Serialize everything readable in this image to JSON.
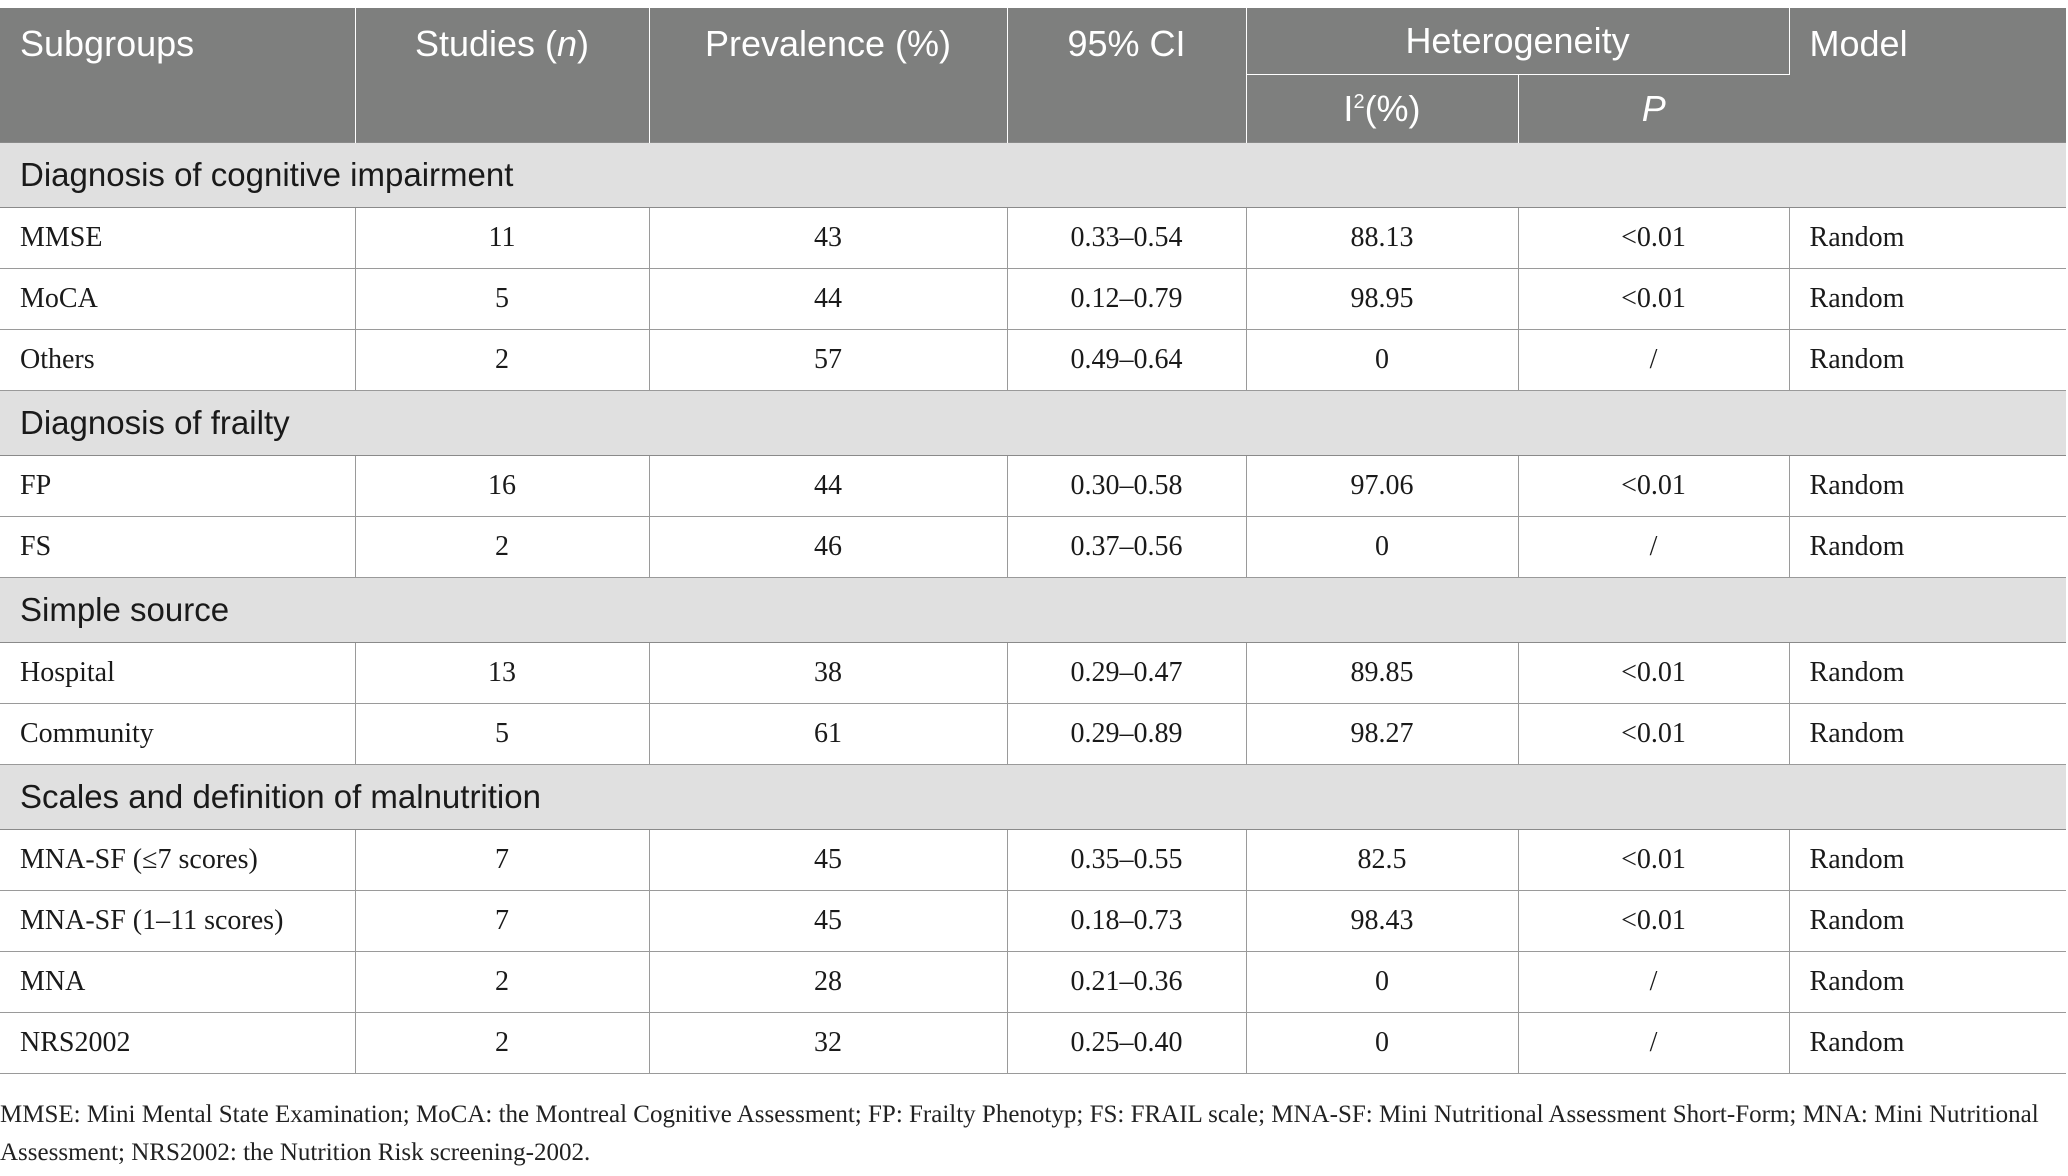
{
  "header": {
    "subgroups": "Subgroups",
    "studies_prefix": "Studies (",
    "studies_n": "n",
    "studies_suffix": ")",
    "prevalence": "Prevalence (%)",
    "ci": "95% CI",
    "heterogeneity": "Heterogeneity",
    "i2_base": "I",
    "i2_sup": "2",
    "i2_suffix": "(%)",
    "p": "P",
    "model": "Model"
  },
  "groups": [
    {
      "title": "Diagnosis of cognitive impairment",
      "rows": [
        {
          "label": "MMSE",
          "studies": "11",
          "prevalence": "43",
          "ci": "0.33–0.54",
          "i2": "88.13",
          "p": "<0.01",
          "model": "Random"
        },
        {
          "label": "MoCA",
          "studies": "5",
          "prevalence": "44",
          "ci": "0.12–0.79",
          "i2": "98.95",
          "p": "<0.01",
          "model": "Random"
        },
        {
          "label": "Others",
          "studies": "2",
          "prevalence": "57",
          "ci": "0.49–0.64",
          "i2": "0",
          "p": "/",
          "model": "Random"
        }
      ]
    },
    {
      "title": "Diagnosis of frailty",
      "rows": [
        {
          "label": "FP",
          "studies": "16",
          "prevalence": "44",
          "ci": "0.30–0.58",
          "i2": "97.06",
          "p": "<0.01",
          "model": "Random"
        },
        {
          "label": "FS",
          "studies": "2",
          "prevalence": "46",
          "ci": "0.37–0.56",
          "i2": "0",
          "p": "/",
          "model": "Random"
        }
      ]
    },
    {
      "title": "Simple source",
      "rows": [
        {
          "label": "Hospital",
          "studies": "13",
          "prevalence": "38",
          "ci": "0.29–0.47",
          "i2": "89.85",
          "p": "<0.01",
          "model": "Random"
        },
        {
          "label": "Community",
          "studies": "5",
          "prevalence": "61",
          "ci": "0.29–0.89",
          "i2": "98.27",
          "p": "<0.01",
          "model": "Random"
        }
      ]
    },
    {
      "title": "Scales and definition of malnutrition",
      "rows": [
        {
          "label": "MNA-SF (≤7 scores)",
          "studies": "7",
          "prevalence": "45",
          "ci": "0.35–0.55",
          "i2": "82.5",
          "p": "<0.01",
          "model": "Random"
        },
        {
          "label": "MNA-SF (1–11 scores)",
          "studies": "7",
          "prevalence": "45",
          "ci": "0.18–0.73",
          "i2": "98.43",
          "p": "<0.01",
          "model": "Random"
        },
        {
          "label": "MNA",
          "studies": "2",
          "prevalence": "28",
          "ci": "0.21–0.36",
          "i2": "0",
          "p": "/",
          "model": "Random"
        },
        {
          "label": "NRS2002",
          "studies": "2",
          "prevalence": "32",
          "ci": "0.25–0.40",
          "i2": "0",
          "p": "/",
          "model": "Random"
        }
      ]
    }
  ],
  "footnote": "MMSE: Mini Mental State Examination; MoCA: the Montreal Cognitive Assessment; FP: Frailty Phenotyp; FS: FRAIL scale; MNA-SF: Mini Nutritional Assessment Short-Form; MNA: Mini Nutritional Assessment; NRS2002: the Nutrition Risk screening-2002."
}
